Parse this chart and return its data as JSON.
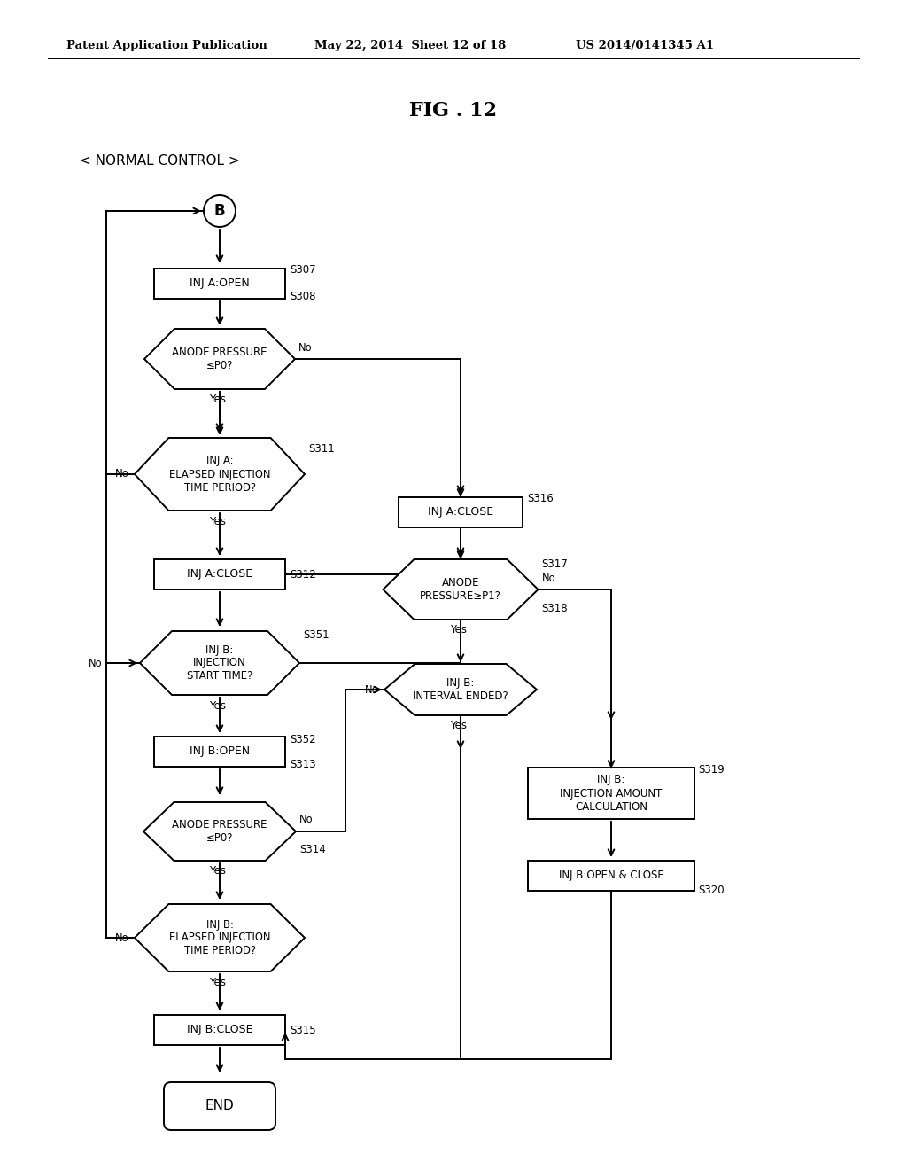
{
  "background": "#ffffff",
  "text_color": "#000000",
  "header_left": "Patent Application Publication",
  "header_mid": "May 22, 2014  Sheet 12 of 18",
  "header_right": "US 2014/0141345 A1",
  "fig_title": "FIG . 12",
  "subtitle": "< NORMAL CONTROL >"
}
